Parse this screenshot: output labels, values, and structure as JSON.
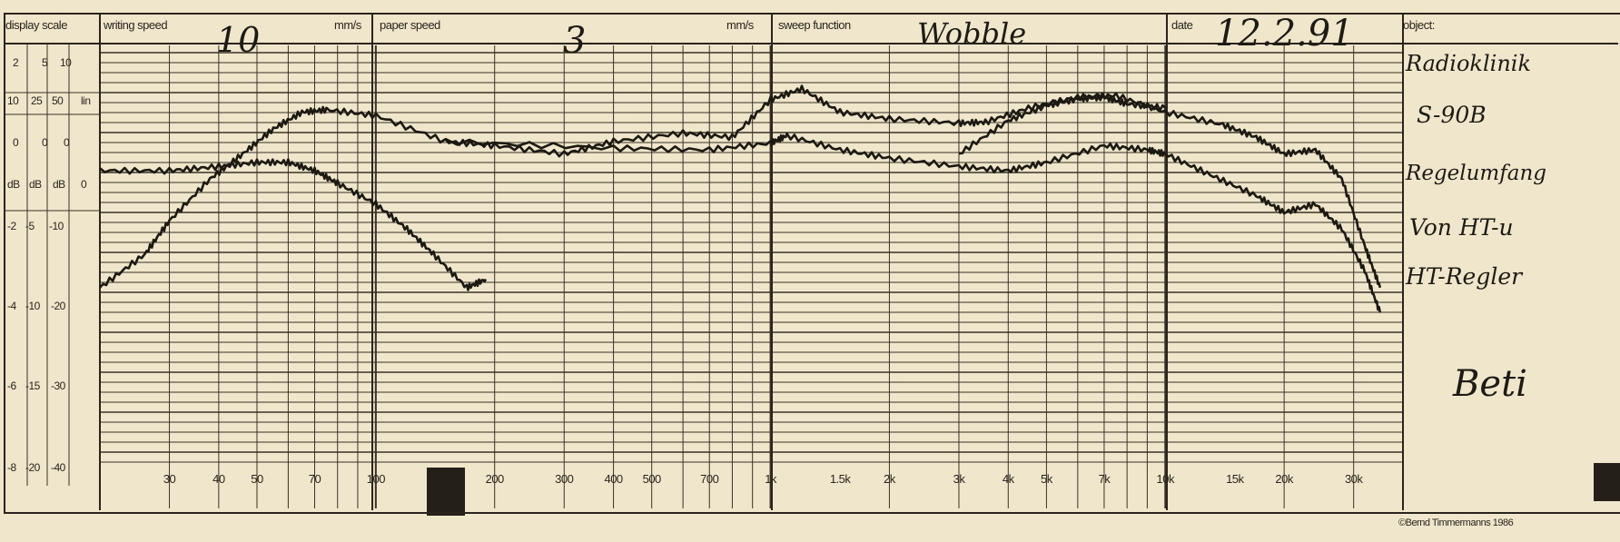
{
  "header": {
    "display_scale_label": "display scale",
    "writing_speed_label": "writing speed",
    "writing_speed_value": "10",
    "writing_speed_unit": "mm/s",
    "paper_speed_label": "paper speed",
    "paper_speed_value": "3",
    "paper_speed_unit": "mm/s",
    "sweep_function_label": "sweep function",
    "sweep_function_value": "Wobble",
    "date_label": "date",
    "date_value": "12.2.91",
    "object_label": "object:"
  },
  "display_scale": {
    "ranges": [
      "2",
      "5",
      "10"
    ],
    "row2": [
      "10",
      "25",
      "50",
      "lin"
    ],
    "zero_row": [
      "0",
      "0",
      "0"
    ],
    "db_row": [
      "dB",
      "dB",
      "dB",
      "0"
    ],
    "rows": [
      [
        "-2",
        "-5",
        "-10"
      ],
      [
        "-4",
        "-10",
        "-20"
      ],
      [
        "-6",
        "-15",
        "-30"
      ],
      [
        "-8",
        "-20",
        "-40"
      ]
    ]
  },
  "object_notes": [
    "Radioklinik",
    "S-90B",
    "Regelumfang",
    "Von HT-u",
    "HT-Regler",
    "Beti"
  ],
  "copyright": "©Bernd Timmermanns 1986",
  "chart_data": {
    "type": "line",
    "x_scale": "log",
    "xlim": [
      20,
      40000
    ],
    "ylim": [
      -40,
      10
    ],
    "y_unit": "dB",
    "x_tick_labels": [
      {
        "x": 30,
        "label": "30"
      },
      {
        "x": 40,
        "label": "40"
      },
      {
        "x": 50,
        "label": "50"
      },
      {
        "x": 70,
        "label": "70"
      },
      {
        "x": 100,
        "label": "100"
      },
      {
        "x": 200,
        "label": "200"
      },
      {
        "x": 300,
        "label": "300"
      },
      {
        "x": 400,
        "label": "400"
      },
      {
        "x": 500,
        "label": "500"
      },
      {
        "x": 700,
        "label": "700"
      },
      {
        "x": 1000,
        "label": "1k"
      },
      {
        "x": 1500,
        "label": "1.5k"
      },
      {
        "x": 2000,
        "label": "2k"
      },
      {
        "x": 3000,
        "label": "3k"
      },
      {
        "x": 4000,
        "label": "4k"
      },
      {
        "x": 5000,
        "label": "5k"
      },
      {
        "x": 7000,
        "label": "7k"
      },
      {
        "x": 10000,
        "label": "10k"
      },
      {
        "x": 15000,
        "label": "15k"
      },
      {
        "x": 20000,
        "label": "20k"
      },
      {
        "x": 30000,
        "label": "30k"
      }
    ],
    "series": [
      {
        "values": [
          [
            20,
            -19
          ],
          [
            26,
            -15
          ],
          [
            30,
            -11
          ],
          [
            38,
            -6
          ],
          [
            46,
            -3
          ],
          [
            55,
            0
          ],
          [
            65,
            2
          ],
          [
            75,
            2.3
          ],
          [
            100,
            1.6
          ],
          [
            150,
            -1.5
          ],
          [
            200,
            -2
          ],
          [
            300,
            -3
          ],
          [
            400,
            -1.5
          ],
          [
            600,
            -0.5
          ],
          [
            800,
            -1
          ],
          [
            1000,
            3.5
          ],
          [
            1200,
            4.8
          ],
          [
            1500,
            2
          ],
          [
            2000,
            1.2
          ],
          [
            3000,
            0.7
          ],
          [
            3500,
            0.8
          ],
          [
            4500,
            2.5
          ],
          [
            6000,
            3.8
          ],
          [
            7500,
            4
          ],
          [
            10000,
            2
          ],
          [
            14000,
            0.5
          ],
          [
            17000,
            -1
          ],
          [
            20000,
            -3
          ],
          [
            24000,
            -2.5
          ],
          [
            28000,
            -6
          ],
          [
            32000,
            -14
          ],
          [
            35000,
            -19
          ]
        ]
      },
      {
        "values": [
          [
            20,
            -5
          ],
          [
            30,
            -5
          ],
          [
            40,
            -4.5
          ],
          [
            50,
            -4
          ],
          [
            60,
            -4
          ],
          [
            70,
            -5
          ],
          [
            80,
            -6.5
          ],
          [
            100,
            -9
          ],
          [
            120,
            -12
          ],
          [
            140,
            -15
          ],
          [
            170,
            -19
          ],
          [
            190,
            -18
          ]
        ]
      },
      {
        "values": [
          [
            150,
            -1.5
          ],
          [
            400,
            -2.3
          ],
          [
            700,
            -2.5
          ],
          [
            1000,
            -1.7
          ],
          [
            1100,
            -0.8
          ],
          [
            1500,
            -2.5
          ],
          [
            2000,
            -3.5
          ],
          [
            3000,
            -4.5
          ],
          [
            4000,
            -5
          ],
          [
            5000,
            -4
          ],
          [
            7000,
            -2
          ],
          [
            9000,
            -2.5
          ],
          [
            10000,
            -3
          ],
          [
            13000,
            -5.5
          ],
          [
            17000,
            -8
          ],
          [
            20000,
            -10
          ],
          [
            24000,
            -9
          ],
          [
            28000,
            -12
          ],
          [
            32000,
            -17
          ],
          [
            35000,
            -22
          ]
        ]
      },
      {
        "values": [
          [
            3000,
            -3
          ],
          [
            4000,
            1
          ],
          [
            5000,
            2.8
          ],
          [
            6000,
            3.6
          ],
          [
            7000,
            3.8
          ],
          [
            8000,
            3
          ],
          [
            10000,
            2.5
          ]
        ]
      }
    ]
  }
}
